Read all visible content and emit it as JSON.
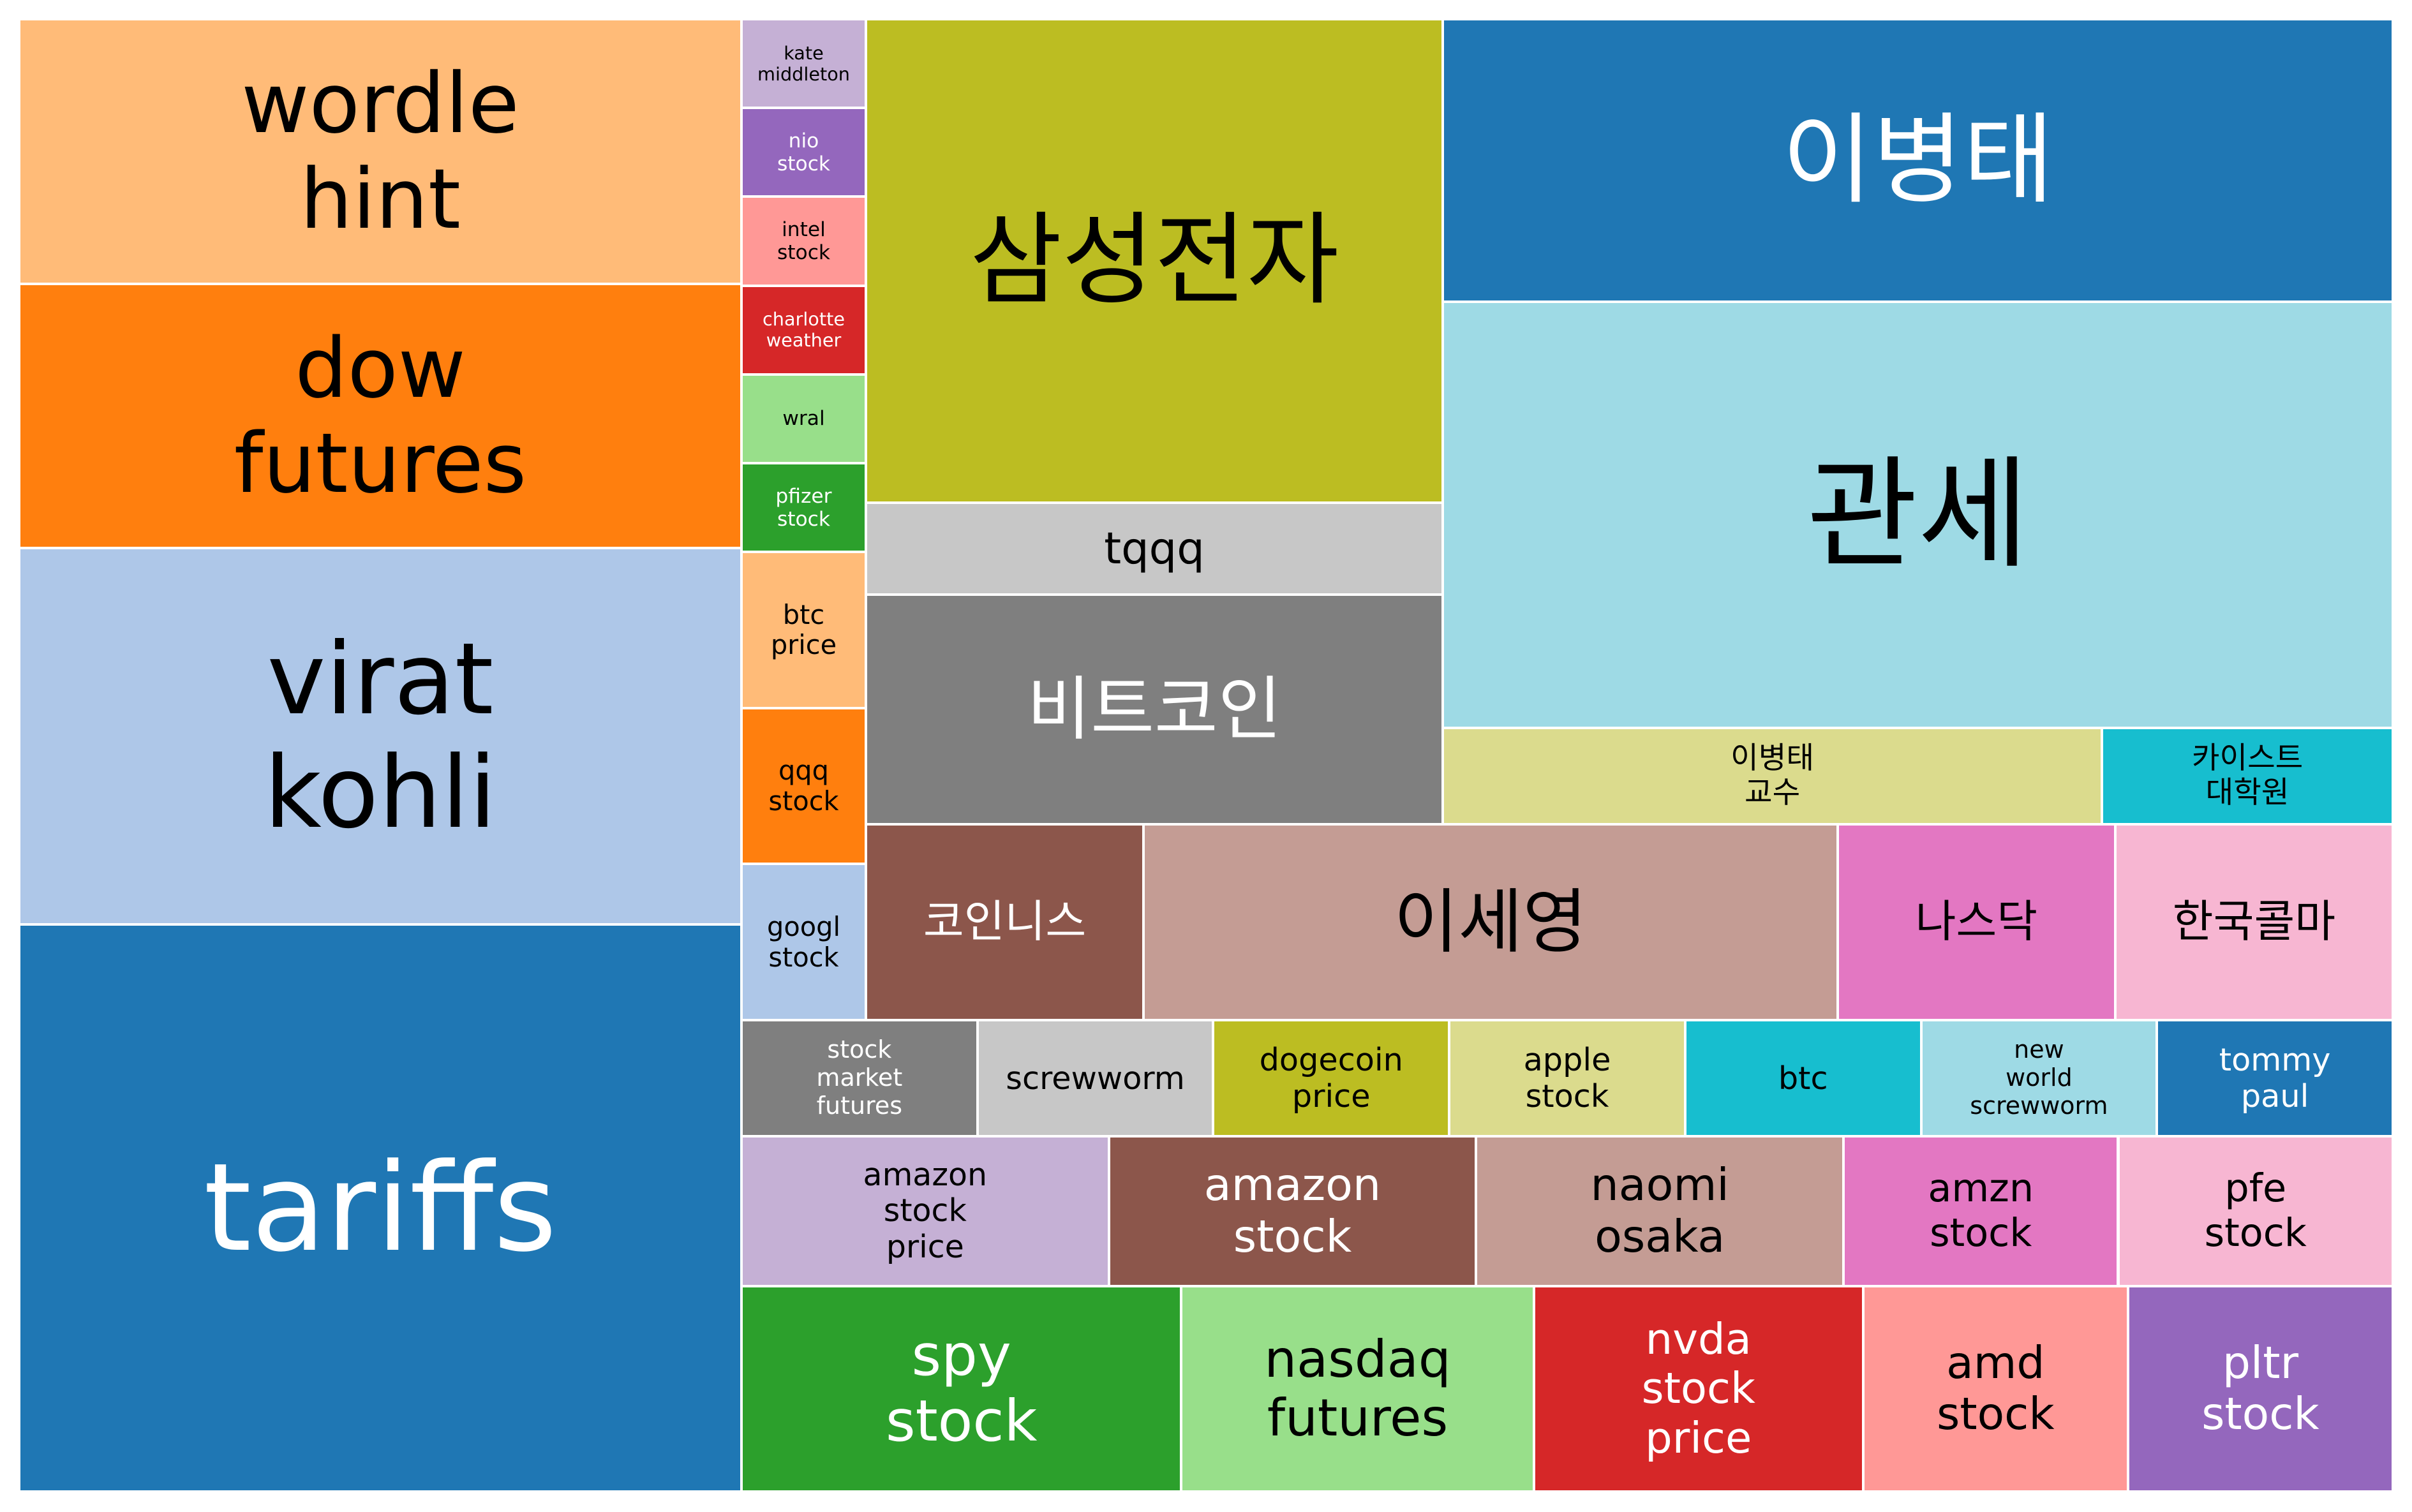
{
  "chart_data": {
    "type": "treemap",
    "title": "",
    "groups": [
      {
        "items": [
          {
            "label": "wordle\nhint",
            "value": 413,
            "color": "#ffbb78",
            "text_color": "#000000"
          },
          {
            "label": "dow\nfutures",
            "value": 412,
            "color": "#ff7f0e",
            "text_color": "#000000"
          },
          {
            "label": "virat\nkohli",
            "value": 587,
            "color": "#aec7e8",
            "text_color": "#000000"
          },
          {
            "label": "tariffs",
            "value": 884,
            "color": "#1f77b4",
            "text_color": "#ffffff"
          }
        ]
      },
      {
        "items": [
          {
            "label": "kate\nmiddleton",
            "value": 33,
            "color": "#c5b0d5",
            "text_color": "#000000"
          },
          {
            "label": "nio\nstock",
            "value": 33,
            "color": "#9467bd",
            "text_color": "#ffffff"
          },
          {
            "label": "intel\nstock",
            "value": 33,
            "color": "#ff9896",
            "text_color": "#000000"
          },
          {
            "label": "charlotte\nweather",
            "value": 33,
            "color": "#d62728",
            "text_color": "#ffffff"
          },
          {
            "label": "wral",
            "value": 33,
            "color": "#98df8a",
            "text_color": "#000000"
          },
          {
            "label": "pfizer\nstock",
            "value": 33,
            "color": "#2ca02c",
            "text_color": "#ffffff"
          },
          {
            "label": "btc\nprice",
            "value": 58,
            "color": "#ffbb78",
            "text_color": "#000000"
          },
          {
            "label": "qqq\nstock",
            "value": 58,
            "color": "#ff7f0e",
            "text_color": "#000000"
          },
          {
            "label": "googl\nstock",
            "value": 58,
            "color": "#aec7e8",
            "text_color": "#000000"
          }
        ]
      },
      {
        "items": [
          {
            "label": "삼성전자",
            "value": 552,
            "color": "#bcbd22",
            "text_color": "#000000"
          },
          {
            "label": "tqqq",
            "value": 105,
            "color": "#c7c7c7",
            "text_color": "#000000"
          },
          {
            "label": "비트코인",
            "value": 262,
            "color": "#7f7f7f",
            "text_color": "#ffffff"
          }
        ]
      },
      {
        "items": [
          {
            "label": "이병태",
            "value": 430,
            "color": "#1f77b4",
            "text_color": "#ffffff"
          },
          {
            "label": "관세",
            "value": 648,
            "color": "#9edae5",
            "text_color": "#000000"
          },
          {
            "label": "이병태\n교수",
            "value": 102,
            "color": "#dbdb8d",
            "text_color": "#000000"
          },
          {
            "label": "카이스트\n대학원",
            "value": 45,
            "color": "#17becf",
            "text_color": "#000000"
          }
        ]
      },
      {
        "items": [
          {
            "label": "코인니스",
            "value": 120,
            "color": "#8c564b",
            "text_color": "#ffffff"
          },
          {
            "label": "이세영",
            "value": 300,
            "color": "#c49c94",
            "text_color": "#000000"
          },
          {
            "label": "나스닥",
            "value": 120,
            "color": "#e377c2",
            "text_color": "#000000"
          },
          {
            "label": "한국콜마",
            "value": 120,
            "color": "#f7b6d2",
            "text_color": "#000000"
          }
        ]
      },
      {
        "items": [
          {
            "label": "stock\nmarket\nfutures",
            "value": 57,
            "color": "#7f7f7f",
            "text_color": "#ffffff"
          },
          {
            "label": "screwworm",
            "value": 57,
            "color": "#c7c7c7",
            "text_color": "#000000"
          },
          {
            "label": "dogecoin\nprice",
            "value": 57,
            "color": "#bcbd22",
            "text_color": "#000000"
          },
          {
            "label": "apple\nstock",
            "value": 57,
            "color": "#dbdb8d",
            "text_color": "#000000"
          },
          {
            "label": "btc",
            "value": 57,
            "color": "#17becf",
            "text_color": "#000000"
          },
          {
            "label": "new\nworld\nscrewworm",
            "value": 57,
            "color": "#9edae5",
            "text_color": "#000000"
          },
          {
            "label": "tommy\npaul",
            "value": 57,
            "color": "#1f77b4",
            "text_color": "#ffffff"
          }
        ]
      },
      {
        "items": [
          {
            "label": "amazon\nstock\nprice",
            "value": 115,
            "color": "#c5b0d5",
            "text_color": "#000000"
          },
          {
            "label": "amazon\nstock",
            "value": 115,
            "color": "#8c564b",
            "text_color": "#ffffff"
          },
          {
            "label": "naomi\nosaka",
            "value": 115,
            "color": "#c49c94",
            "text_color": "#000000"
          },
          {
            "label": "amzn\nstock",
            "value": 86,
            "color": "#e377c2",
            "text_color": "#000000"
          },
          {
            "label": "pfe\nstock",
            "value": 86,
            "color": "#f7b6d2",
            "text_color": "#000000"
          }
        ]
      },
      {
        "items": [
          {
            "label": "spy\nstock",
            "value": 191,
            "color": "#2ca02c",
            "text_color": "#ffffff"
          },
          {
            "label": "nasdaq\nfutures",
            "value": 153,
            "color": "#98df8a",
            "text_color": "#000000"
          },
          {
            "label": "nvda\nstock\nprice",
            "value": 143,
            "color": "#d62728",
            "text_color": "#ffffff"
          },
          {
            "label": "amd\nstock",
            "value": 115,
            "color": "#ff9896",
            "text_color": "#000000"
          },
          {
            "label": "pltr\nstock",
            "value": 115,
            "color": "#9467bd",
            "text_color": "#ffffff"
          }
        ]
      }
    ]
  }
}
